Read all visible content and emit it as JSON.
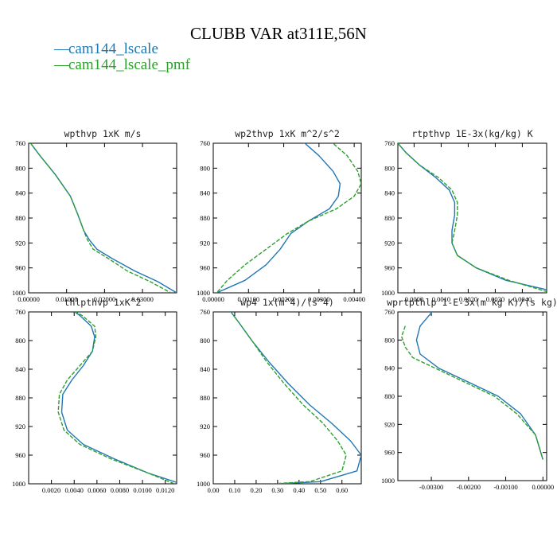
{
  "title": "CLUBB VAR at311E,56N",
  "legend": [
    {
      "name": "cam144_lscale",
      "color": "#1f77b4"
    },
    {
      "name": "cam144_lscale_pmf",
      "color": "#2ca02c"
    }
  ],
  "chart_data": [
    {
      "type": "line",
      "title": "wpthvp   1xK m/s",
      "xlim": [
        0,
        0.039
      ],
      "ylim": [
        760,
        1000
      ],
      "x_ticks": [
        "0.00000",
        "0.01000",
        "0.02000",
        "0.03000"
      ],
      "x_tick_values": [
        0,
        0.01,
        0.02,
        0.03
      ],
      "y_ticks": [
        "760",
        "800",
        "840",
        "880",
        "920",
        "960",
        "1000"
      ],
      "y_tick_values": [
        760,
        800,
        840,
        880,
        920,
        960,
        1000
      ],
      "series": [
        {
          "name": "cam144_lscale",
          "x": [
            0.0005,
            0.003,
            0.007,
            0.011,
            0.013,
            0.0145,
            0.016,
            0.018,
            0.022,
            0.028,
            0.034,
            0.039
          ],
          "y": [
            760,
            780,
            810,
            845,
            875,
            900,
            915,
            930,
            945,
            965,
            982,
            1000
          ]
        },
        {
          "name": "cam144_lscale_pmf",
          "x": [
            0.0005,
            0.003,
            0.007,
            0.011,
            0.013,
            0.0145,
            0.0155,
            0.017,
            0.021,
            0.026,
            0.032,
            0.0375
          ],
          "y": [
            760,
            780,
            810,
            845,
            875,
            900,
            915,
            930,
            945,
            965,
            982,
            1000
          ]
        }
      ]
    },
    {
      "type": "line",
      "title": "wp2thvp   1xK m^2/s^2",
      "xlim": [
        0,
        0.0042
      ],
      "ylim": [
        760,
        1000
      ],
      "x_ticks": [
        "0.00000",
        "0.00100",
        "0.00200",
        "0.00300",
        "0.00400"
      ],
      "x_tick_values": [
        0,
        0.001,
        0.002,
        0.003,
        0.004
      ],
      "y_ticks": [
        "760",
        "800",
        "840",
        "880",
        "920",
        "960",
        "1000"
      ],
      "y_tick_values": [
        760,
        800,
        840,
        880,
        920,
        960,
        1000
      ],
      "series": [
        {
          "name": "cam144_lscale",
          "x": [
            0.0025,
            0.003,
            0.0034,
            0.0036,
            0.00355,
            0.0033,
            0.0027,
            0.0022,
            0.0019,
            0.0015,
            0.0009,
            0.0001
          ],
          "y": [
            755,
            780,
            805,
            825,
            845,
            865,
            885,
            905,
            930,
            955,
            980,
            1000
          ]
        },
        {
          "name": "cam144_lscale_pmf",
          "x": [
            0.0033,
            0.0038,
            0.0041,
            0.0042,
            0.004,
            0.0035,
            0.0027,
            0.0021,
            0.0015,
            0.0009,
            0.0004,
            0.0001
          ],
          "y": [
            755,
            780,
            805,
            825,
            845,
            865,
            885,
            905,
            930,
            955,
            980,
            1000
          ]
        }
      ]
    },
    {
      "type": "line",
      "title": "rtpthvp   1E-3x(kg/kg) K",
      "xlim": [
        -0.0006,
        0.0049
      ],
      "ylim": [
        760,
        1000
      ],
      "x_ticks": [
        "0.0000",
        "0.0010",
        "0.0020",
        "0.0030",
        "0.0040"
      ],
      "x_tick_values": [
        0,
        0.001,
        0.002,
        0.003,
        0.004
      ],
      "y_ticks": [
        "760",
        "800",
        "840",
        "880",
        "920",
        "960",
        "1000"
      ],
      "y_tick_values": [
        760,
        800,
        840,
        880,
        920,
        960,
        1000
      ],
      "series": [
        {
          "name": "cam144_lscale",
          "x": [
            -0.0006,
            -0.0003,
            0.0002,
            0.0008,
            0.0013,
            0.0015,
            0.0015,
            0.0014,
            0.0014,
            0.0016,
            0.0023,
            0.0034,
            0.0049
          ],
          "y": [
            760,
            775,
            795,
            815,
            835,
            855,
            875,
            900,
            920,
            940,
            960,
            980,
            995
          ]
        },
        {
          "name": "cam144_lscale_pmf",
          "x": [
            -0.0006,
            -0.0003,
            0.0002,
            0.0009,
            0.0014,
            0.0016,
            0.0016,
            0.0015,
            0.0014,
            0.0016,
            0.0023,
            0.0035,
            0.0049
          ],
          "y": [
            760,
            775,
            795,
            815,
            835,
            855,
            875,
            900,
            920,
            940,
            960,
            980,
            998
          ]
        }
      ]
    },
    {
      "type": "line",
      "title": "thlpthvp   1xK^2",
      "xlim": [
        0,
        0.013
      ],
      "ylim": [
        760,
        1000
      ],
      "x_ticks": [
        "0.0020",
        "0.0040",
        "0.0060",
        "0.0080",
        "0.0100",
        "0.0120"
      ],
      "x_tick_values": [
        0.002,
        0.004,
        0.006,
        0.008,
        0.01,
        0.012
      ],
      "y_ticks": [
        "760",
        "800",
        "840",
        "880",
        "920",
        "960",
        "1000"
      ],
      "y_tick_values": [
        760,
        800,
        840,
        880,
        920,
        960,
        1000
      ],
      "series": [
        {
          "name": "cam144_lscale",
          "x": [
            0.0036,
            0.0045,
            0.0055,
            0.0058,
            0.0056,
            0.0048,
            0.0038,
            0.003,
            0.0029,
            0.0034,
            0.0048,
            0.0075,
            0.0105,
            0.013
          ],
          "y": [
            755,
            765,
            780,
            795,
            815,
            835,
            855,
            875,
            900,
            925,
            945,
            965,
            985,
            998
          ]
        },
        {
          "name": "cam144_lscale_pmf",
          "x": [
            0.0036,
            0.0047,
            0.0058,
            0.0059,
            0.0056,
            0.0045,
            0.0034,
            0.0027,
            0.0026,
            0.0031,
            0.0045,
            0.0072,
            0.0105,
            0.0128
          ],
          "y": [
            755,
            765,
            780,
            795,
            815,
            835,
            855,
            875,
            900,
            925,
            945,
            965,
            985,
            1000
          ]
        }
      ]
    },
    {
      "type": "line",
      "title": "wp4   1x(m^4)/(s^4)",
      "xlim": [
        0,
        0.69
      ],
      "ylim": [
        760,
        1000
      ],
      "x_ticks": [
        "0.00",
        "0.10",
        "0.20",
        "0.30",
        "0.40",
        "0.50",
        "0.60"
      ],
      "x_tick_values": [
        0,
        0.1,
        0.2,
        0.3,
        0.4,
        0.5,
        0.6
      ],
      "y_ticks": [
        "760",
        "800",
        "840",
        "880",
        "920",
        "960",
        "1000"
      ],
      "y_tick_values": [
        760,
        800,
        840,
        880,
        920,
        960,
        1000
      ],
      "series": [
        {
          "name": "cam144_lscale",
          "x": [
            0.07,
            0.12,
            0.18,
            0.26,
            0.35,
            0.45,
            0.55,
            0.64,
            0.69,
            0.67,
            0.5,
            0.3
          ],
          "y": [
            755,
            775,
            800,
            830,
            860,
            890,
            915,
            940,
            960,
            982,
            997,
            1000
          ]
        },
        {
          "name": "cam144_lscale_pmf",
          "x": [
            0.07,
            0.12,
            0.18,
            0.25,
            0.33,
            0.42,
            0.51,
            0.58,
            0.62,
            0.6,
            0.45,
            0.27
          ],
          "y": [
            755,
            775,
            800,
            830,
            860,
            890,
            915,
            940,
            960,
            982,
            997,
            1000
          ]
        }
      ]
    },
    {
      "type": "line",
      "title": "wprtpthlp   1-E-3x(m kg K)/(s kg)",
      "xlim": [
        -0.0039,
        0.0001
      ],
      "ylim": [
        760,
        1000
      ],
      "x_ticks": [
        "-0.00300",
        "-0.00200",
        "-0.00100",
        "0.00000"
      ],
      "x_tick_values": [
        -0.003,
        -0.002,
        -0.001,
        0
      ],
      "y_ticks": [
        "760",
        "800",
        "840",
        "880",
        "920",
        "960",
        "1000"
      ],
      "y_tick_values": [
        760,
        800,
        840,
        880,
        920,
        960,
        1000
      ],
      "series": [
        {
          "name": "cam144_lscale",
          "x": [
            -0.0029,
            -0.0033,
            -0.0034,
            -0.0033,
            -0.0028,
            -0.002,
            -0.0012,
            -0.0006,
            -0.0002,
            0.0
          ],
          "y": [
            755,
            780,
            800,
            820,
            840,
            860,
            880,
            905,
            935,
            970
          ]
        },
        {
          "name": "cam144_lscale_pmf",
          "x": [
            -0.0037,
            -0.0038,
            -0.0037,
            -0.0035,
            -0.0029,
            -0.0021,
            -0.0013,
            -0.0007,
            -0.0002,
            0.0
          ],
          "y": [
            780,
            795,
            810,
            825,
            840,
            860,
            880,
            905,
            935,
            970
          ]
        }
      ]
    }
  ]
}
